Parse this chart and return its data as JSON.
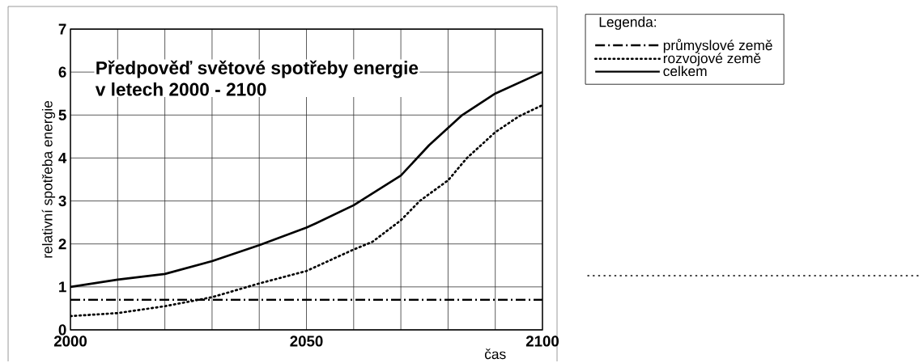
{
  "chart_data": {
    "type": "line",
    "title": "Předpověď světové spotřeby energie",
    "subtitle": "v letech 2000 - 2100",
    "xlabel": "čas",
    "ylabel": "relativní spotřeba energie",
    "legend_title": "Legenda:",
    "xlim": [
      2000,
      2100
    ],
    "ylim": [
      0,
      7
    ],
    "xticks": [
      2000,
      {
        "value": 2010,
        "label": null
      },
      {
        "value": 2020,
        "label": null
      },
      {
        "value": 2030,
        "label": null
      },
      {
        "value": 2040,
        "label": null
      },
      2050,
      {
        "value": 2060,
        "label": null
      },
      {
        "value": 2070,
        "label": null
      },
      {
        "value": 2080,
        "label": null
      },
      {
        "value": 2090,
        "label": null
      },
      2100
    ],
    "yticks": [
      0,
      1,
      2,
      3,
      4,
      5,
      6,
      7
    ],
    "grid": true,
    "legend": "right",
    "marker": "none",
    "series": [
      {
        "name": "průmyslové země",
        "color": "#000000",
        "line_style": "dashdot",
        "x": [
          2000,
          2100
        ],
        "values": [
          0.7,
          0.7
        ]
      },
      {
        "name": "rozvojové země",
        "color": "#000000",
        "line_style": "dotted",
        "x": [
          2000,
          2010,
          2020,
          2030,
          2040,
          2050,
          2060,
          2064,
          2070,
          2074,
          2080,
          2084,
          2090,
          2095,
          2100
        ],
        "values": [
          0.32,
          0.39,
          0.55,
          0.76,
          1.08,
          1.37,
          1.87,
          2.05,
          2.55,
          3.0,
          3.48,
          4.0,
          4.6,
          4.97,
          5.23
        ]
      },
      {
        "name": "celkem",
        "color": "#000000",
        "line_style": "solid",
        "x": [
          2000,
          2010,
          2020,
          2030,
          2040,
          2050,
          2052,
          2060,
          2070,
          2076,
          2083,
          2090,
          2100
        ],
        "values": [
          1.0,
          1.17,
          1.3,
          1.6,
          1.97,
          2.38,
          2.48,
          2.9,
          3.59,
          4.3,
          5.0,
          5.5,
          6.0
        ]
      }
    ]
  }
}
